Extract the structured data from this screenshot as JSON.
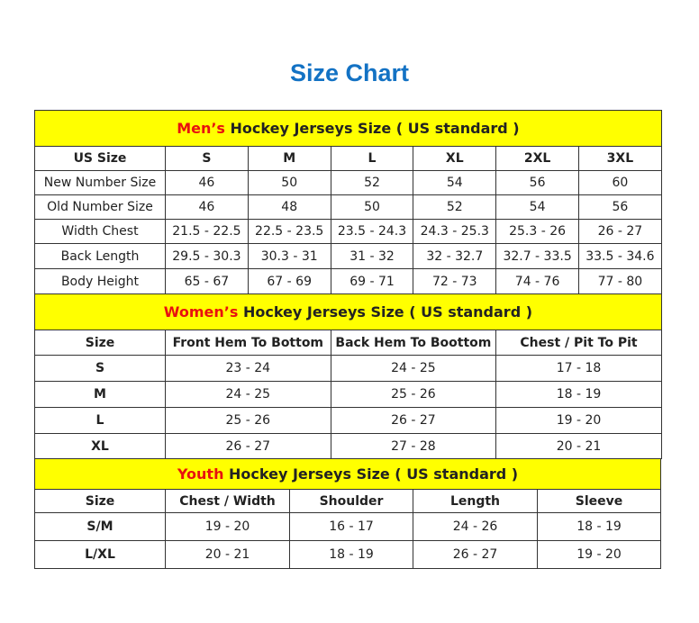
{
  "title": "Size Chart",
  "colors": {
    "title": "#1372c4",
    "banner": "#ffff00",
    "accent": "#e8110f"
  },
  "men": {
    "caption_accent": "Men’s",
    "caption_rest": " Hockey Jerseys Size ( US standard )",
    "headers": [
      "US Size",
      "S",
      "M",
      "L",
      "XL",
      "2XL",
      "3XL"
    ],
    "rows": [
      [
        "New Number Size",
        "46",
        "50",
        "52",
        "54",
        "56",
        "60"
      ],
      [
        "Old Number Size",
        "46",
        "48",
        "50",
        "52",
        "54",
        "56"
      ],
      [
        "Width Chest",
        "21.5 - 22.5",
        "22.5 - 23.5",
        "23.5 - 24.3",
        "24.3 - 25.3",
        "25.3 - 26",
        "26 - 27"
      ],
      [
        "Back Length",
        "29.5 - 30.3",
        "30.3 - 31",
        "31 - 32",
        "32 - 32.7",
        "32.7 - 33.5",
        "33.5 - 34.6"
      ],
      [
        "Body Height",
        "65 - 67",
        "67 - 69",
        "69 - 71",
        "72 - 73",
        "74 - 76",
        "77 - 80"
      ]
    ]
  },
  "women": {
    "caption_accent": "Women’s",
    "caption_rest": " Hockey Jerseys Size ( US standard )",
    "headers": [
      "Size",
      "Front Hem To Bottom",
      "Back Hem To Boottom",
      "Chest / Pit To Pit"
    ],
    "rows": [
      [
        "S",
        "23 - 24",
        "24 - 25",
        "17 - 18"
      ],
      [
        "M",
        "24 - 25",
        "25 - 26",
        "18 - 19"
      ],
      [
        "L",
        "25 - 26",
        "26 - 27",
        "19 - 20"
      ],
      [
        "XL",
        "26 - 27",
        "27 - 28",
        "20 - 21"
      ]
    ]
  },
  "youth": {
    "caption_accent": "Youth",
    "caption_rest": " Hockey Jerseys Size ( US standard )",
    "headers": [
      "Size",
      "Chest / Width",
      "Shoulder",
      "Length",
      "Sleeve"
    ],
    "rows": [
      [
        "S/M",
        "19 - 20",
        "16 - 17",
        "24 - 26",
        "18 - 19"
      ],
      [
        "L/XL",
        "20 - 21",
        "18 - 19",
        "26 - 27",
        "19 - 20"
      ]
    ]
  }
}
